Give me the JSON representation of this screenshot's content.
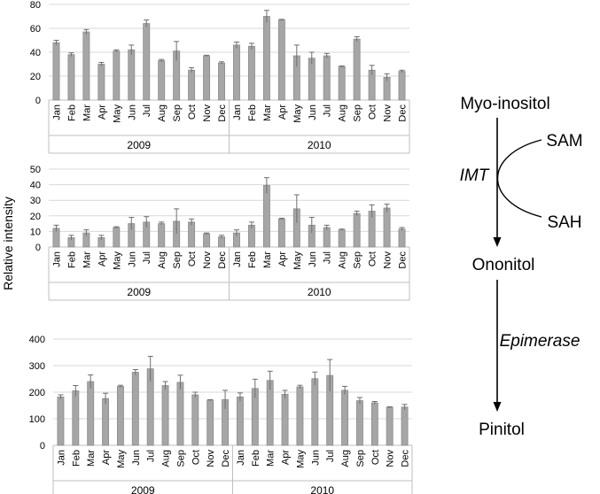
{
  "ylabel": "Relative intensity",
  "chart_data": [
    {
      "type": "bar",
      "title": "",
      "ylim": [
        0,
        80
      ],
      "yticks": [
        0,
        20,
        40,
        60,
        80
      ],
      "months": [
        "Jan",
        "Feb",
        "Mar",
        "Apr",
        "May",
        "Jun",
        "Jul",
        "Aug",
        "Sep",
        "Oct",
        "Nov",
        "Dec"
      ],
      "years": [
        "2009",
        "2010"
      ],
      "series": [
        {
          "name": "2009",
          "values": [
            48,
            38,
            57,
            30,
            41,
            42,
            64,
            33,
            41,
            25,
            37,
            31
          ],
          "errors": [
            2,
            1.5,
            2,
            1.5,
            1,
            4,
            3,
            1,
            8,
            2,
            0.5,
            1
          ]
        },
        {
          "name": "2010",
          "values": [
            46,
            45,
            70,
            67,
            37,
            35,
            37,
            28,
            51,
            25,
            19,
            24
          ],
          "errors": [
            2.5,
            2.5,
            5,
            0.5,
            9,
            5,
            2,
            0.5,
            2,
            4,
            3,
            1
          ]
        }
      ]
    },
    {
      "type": "bar",
      "title": "",
      "ylim": [
        0,
        50
      ],
      "yticks": [
        0,
        10,
        20,
        30,
        40,
        50
      ],
      "months": [
        "Jan",
        "Feb",
        "Mar",
        "Apr",
        "May",
        "Jun",
        "Jul",
        "Aug",
        "Sep",
        "Oct",
        "Nov",
        "Dec"
      ],
      "years": [
        "2009",
        "2010"
      ],
      "series": [
        {
          "name": "2009",
          "values": [
            12,
            6,
            9,
            6,
            12.5,
            15,
            16,
            15,
            16.5,
            16,
            8.5,
            6.5
          ],
          "errors": [
            2,
            1.5,
            2,
            1.5,
            0.5,
            4,
            3.5,
            1,
            8,
            2,
            0.5,
            1
          ]
        },
        {
          "name": "2010",
          "values": [
            9,
            14,
            39.5,
            18,
            24.5,
            14,
            12.5,
            11,
            21.5,
            23,
            25,
            11.5
          ],
          "errors": [
            2,
            2,
            5,
            0.5,
            9,
            5,
            1.5,
            0.5,
            1.5,
            4,
            2.5,
            1
          ]
        }
      ]
    },
    {
      "type": "bar",
      "title": "",
      "ylim": [
        0,
        400
      ],
      "yticks": [
        0,
        100,
        200,
        300,
        400
      ],
      "months": [
        "Jan",
        "Feb",
        "Mar",
        "Apr",
        "May",
        "Jun",
        "Jul",
        "Aug",
        "Sep",
        "Oct",
        "Nov",
        "Dec"
      ],
      "years": [
        "2009",
        "2010"
      ],
      "series": [
        {
          "name": "2009",
          "values": [
            182,
            205,
            240,
            176,
            222,
            275,
            288,
            225,
            237,
            190,
            170,
            172
          ],
          "errors": [
            8,
            20,
            25,
            20,
            4,
            10,
            47,
            15,
            27,
            10,
            2,
            35
          ]
        },
        {
          "name": "2010",
          "values": [
            182,
            214,
            244,
            192,
            220,
            251,
            263,
            207,
            168,
            160,
            143,
            144
          ],
          "errors": [
            15,
            35,
            35,
            15,
            6,
            25,
            60,
            15,
            12,
            5,
            2,
            10
          ]
        }
      ]
    }
  ],
  "pathway": {
    "substrate": "Myo-inositol",
    "cofactor_in": "SAM",
    "cofactor_out": "SAH",
    "enzyme1": "IMT",
    "intermediate": "Ononitol",
    "enzyme2": "Epimerase",
    "product": "Pinitol"
  },
  "colors": {
    "bar_fill": "#a6a6a6",
    "bar_stroke": "#8c8c8c",
    "grid": "#d9d9d9",
    "axis": "#bfbfbf",
    "text": "#000000"
  }
}
